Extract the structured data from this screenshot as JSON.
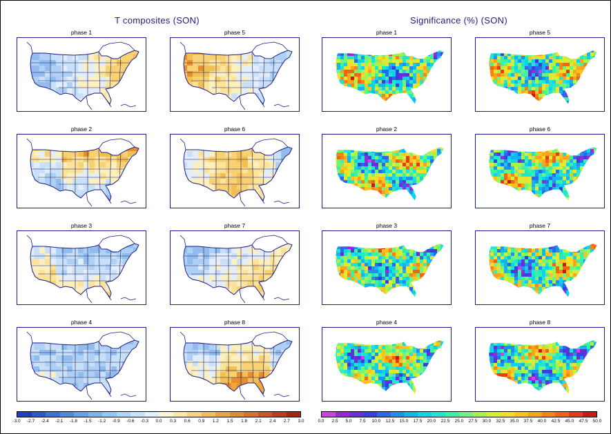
{
  "left_section_title": "T composites (SON)",
  "right_section_title": "Significance (%) (SON)",
  "temp_panels": [
    {
      "label": "phase 1",
      "pattern": "warm-east"
    },
    {
      "label": "phase 5",
      "pattern": "warm-west"
    },
    {
      "label": "phase 2",
      "pattern": "warm-north-cool-south"
    },
    {
      "label": "phase 6",
      "pattern": "warm-central"
    },
    {
      "label": "phase 3",
      "pattern": "cool-north"
    },
    {
      "label": "phase 7",
      "pattern": "warm-southeast"
    },
    {
      "label": "phase 4",
      "pattern": "cool"
    },
    {
      "label": "phase 8",
      "pattern": "warm-south"
    }
  ],
  "sig_panels": [
    {
      "label": "phase 1"
    },
    {
      "label": "phase 5"
    },
    {
      "label": "phase 2"
    },
    {
      "label": "phase 6"
    },
    {
      "label": "phase 3"
    },
    {
      "label": "phase 7"
    },
    {
      "label": "phase 4"
    },
    {
      "label": "phase 8"
    }
  ],
  "temp_colorbar": {
    "ticks": [
      "-3.0",
      "-2.7",
      "-2.4",
      "-2.1",
      "-1.8",
      "-1.5",
      "-1.2",
      "-0.9",
      "-0.6",
      "-0.3",
      "0.0",
      "0.3",
      "0.6",
      "0.9",
      "1.2",
      "1.5",
      "1.8",
      "2.1",
      "2.4",
      "2.7",
      "3.0"
    ],
    "colors": [
      "#1f3fbf",
      "#2a58d0",
      "#3a72dd",
      "#4c8ae6",
      "#63a0ee",
      "#7cb4f2",
      "#96c6f5",
      "#b0d6f8",
      "#c9e4fb",
      "#e4f1fd",
      "#fdf6d8",
      "#fbe9a8",
      "#f7d67a",
      "#f2bf55",
      "#eca53d",
      "#e58c30",
      "#dc7126",
      "#d0561e",
      "#c03c18",
      "#a82412"
    ]
  },
  "sig_colorbar": {
    "ticks": [
      "0.0",
      "2.5",
      "5.0",
      "7.5",
      "10.0",
      "12.5",
      "15.0",
      "17.5",
      "20.0",
      "22.5",
      "25.0",
      "27.5",
      "30.0",
      "32.5",
      "35.0",
      "37.5",
      "40.0",
      "42.5",
      "45.0",
      "47.5",
      "50.0"
    ],
    "colors": [
      "#d040e8",
      "#9a28d6",
      "#6a2ed8",
      "#3a3ee0",
      "#2a6ae8",
      "#1e90f0",
      "#14b4f2",
      "#10d2ee",
      "#1ee6d0",
      "#3cf0a8",
      "#70f47a",
      "#a8f24e",
      "#d6ee36",
      "#f4de28",
      "#fcc222",
      "#fca41c",
      "#f88418",
      "#f06414",
      "#e23e12",
      "#c81a10"
    ]
  }
}
